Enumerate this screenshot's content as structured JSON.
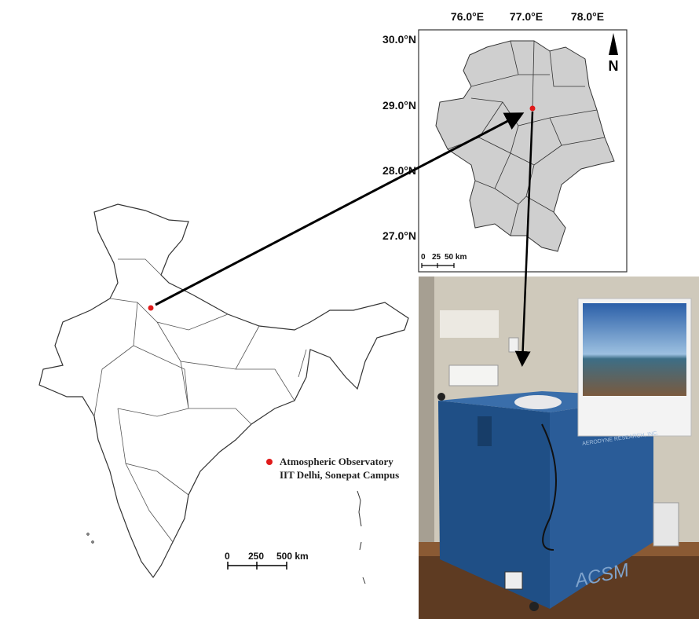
{
  "inset_map": {
    "longitudes": [
      "76.0°E",
      "77.0°E",
      "78.0°E"
    ],
    "latitudes": [
      "30.0°N",
      "29.0°N",
      "28.0°N",
      "27.0°N"
    ],
    "north": "N",
    "scale": [
      "0",
      "25",
      "50 km"
    ]
  },
  "india_map": {
    "scale": [
      "0",
      "250",
      "500 km"
    ],
    "legend": [
      "Atmospheric Observatory",
      "IIT Delhi, Sonepat Campus"
    ]
  },
  "photo": {
    "instrument_label": "ACSM",
    "maker_label": "AERODYNE RESEARCH, INC."
  }
}
